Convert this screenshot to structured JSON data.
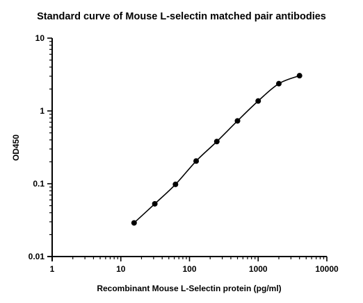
{
  "chart_data": {
    "type": "scatter",
    "title": "Standard curve of Mouse L-selectin matched pair antibodies",
    "xlabel": "Recombinant Mouse L-Selectin protein (pg/ml)",
    "ylabel": "OD450",
    "x_scale": "log",
    "y_scale": "log",
    "xlim": [
      1,
      10000
    ],
    "ylim": [
      0.01,
      10
    ],
    "x_ticks": [
      "1",
      "10",
      "100",
      "1000",
      "10000"
    ],
    "y_ticks": [
      "0.01",
      "0.1",
      "1",
      "10"
    ],
    "grid": false,
    "series": [
      {
        "x": [
          15.6,
          31.25,
          62.5,
          125,
          250,
          500,
          1000,
          2000,
          4000
        ],
        "y": [
          0.029,
          0.053,
          0.098,
          0.205,
          0.38,
          0.73,
          1.37,
          2.37,
          3.05
        ],
        "fit_curve": true,
        "color": "#000000",
        "marker": "circle"
      }
    ]
  }
}
